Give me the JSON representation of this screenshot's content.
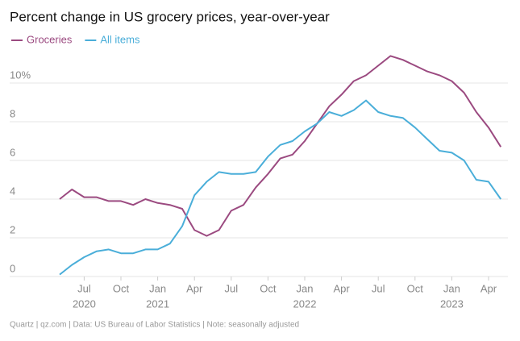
{
  "chart_data": {
    "type": "line",
    "title": "Percent change in US grocery prices, year-over-year",
    "source": "Quartz | qz.com | Data: US Bureau of Labor Statistics | Note: seasonally adjusted",
    "x": [
      "2020-05",
      "2020-06",
      "2020-07",
      "2020-08",
      "2020-09",
      "2020-10",
      "2020-11",
      "2020-12",
      "2021-01",
      "2021-02",
      "2021-03",
      "2021-04",
      "2021-05",
      "2021-06",
      "2021-07",
      "2021-08",
      "2021-09",
      "2021-10",
      "2021-11",
      "2021-12",
      "2022-01",
      "2022-02",
      "2022-03",
      "2022-04",
      "2022-05",
      "2022-06",
      "2022-07",
      "2022-08",
      "2022-09",
      "2022-10",
      "2022-11",
      "2022-12",
      "2023-01",
      "2023-02",
      "2023-03",
      "2023-04",
      "2023-05"
    ],
    "series": [
      {
        "name": "Groceries",
        "color": "#9b4a80",
        "values": [
          4.0,
          4.5,
          4.1,
          4.1,
          3.9,
          3.9,
          3.7,
          4.0,
          3.8,
          3.7,
          3.5,
          2.4,
          2.1,
          2.4,
          3.4,
          3.7,
          4.6,
          5.3,
          6.1,
          6.3,
          7.0,
          7.9,
          8.8,
          9.4,
          10.1,
          10.4,
          10.9,
          11.4,
          11.2,
          10.9,
          10.6,
          10.4,
          10.1,
          9.5,
          8.5,
          7.7,
          6.7
        ]
      },
      {
        "name": "All items",
        "color": "#4aaed9",
        "values": [
          0.1,
          0.6,
          1.0,
          1.3,
          1.4,
          1.2,
          1.2,
          1.4,
          1.4,
          1.7,
          2.6,
          4.2,
          4.9,
          5.4,
          5.3,
          5.3,
          5.4,
          6.2,
          6.8,
          7.0,
          7.5,
          7.9,
          8.5,
          8.3,
          8.6,
          9.1,
          8.5,
          8.3,
          8.2,
          7.7,
          7.1,
          6.5,
          6.4,
          6.0,
          5.0,
          4.9,
          4.0
        ]
      }
    ],
    "ylim": [
      0,
      11.5
    ],
    "yticks": [
      0,
      2,
      4,
      6,
      8,
      {
        "value": 10,
        "label": "10%"
      }
    ],
    "xticks": [
      {
        "value": "2020-07",
        "label": "Jul"
      },
      {
        "value": "2020-10",
        "label": "Oct"
      },
      {
        "value": "2021-01",
        "label": "Jan"
      },
      {
        "value": "2021-04",
        "label": "Apr"
      },
      {
        "value": "2021-07",
        "label": "Jul"
      },
      {
        "value": "2021-10",
        "label": "Oct"
      },
      {
        "value": "2022-01",
        "label": "Jan"
      },
      {
        "value": "2022-04",
        "label": "Apr"
      },
      {
        "value": "2022-07",
        "label": "Jul"
      },
      {
        "value": "2022-10",
        "label": "Oct"
      },
      {
        "value": "2023-01",
        "label": "Jan"
      },
      {
        "value": "2023-04",
        "label": "Apr"
      }
    ],
    "year_labels": [
      {
        "value": "2020-07",
        "label": "2020"
      },
      {
        "value": "2021-01",
        "label": "2021"
      },
      {
        "value": "2022-01",
        "label": "2022"
      },
      {
        "value": "2023-01",
        "label": "2023"
      }
    ],
    "grid": true
  }
}
